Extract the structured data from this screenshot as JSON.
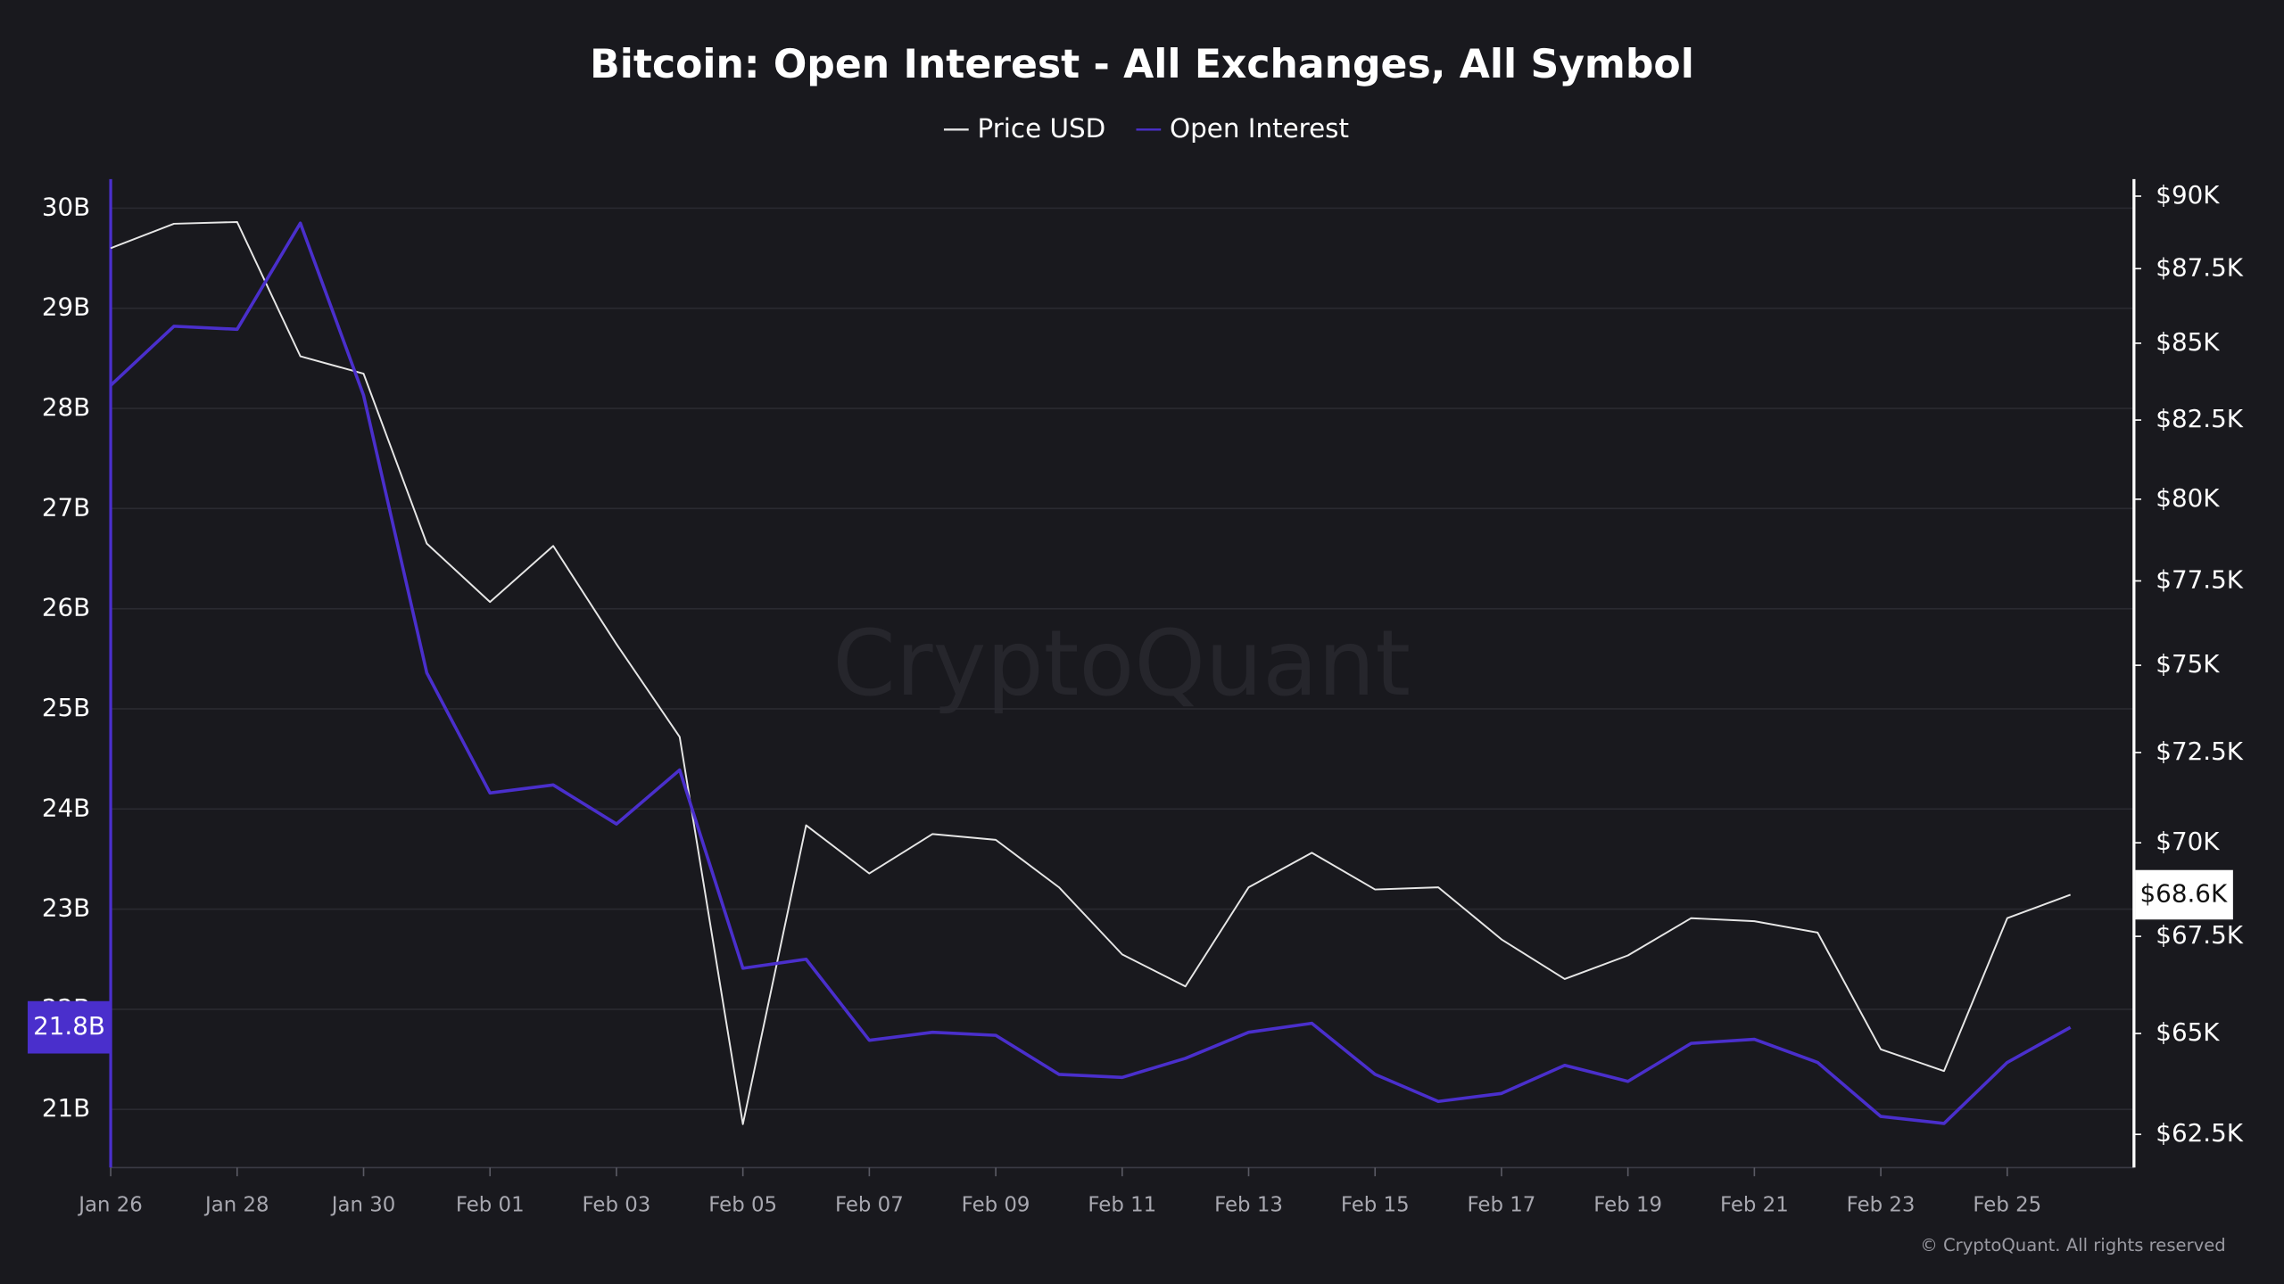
{
  "chart_data": {
    "type": "line",
    "title": "Bitcoin: Open Interest - All Exchanges, All Symbol",
    "categories": [
      "Jan 26",
      null,
      "Jan 28",
      null,
      "Jan 30",
      null,
      "Feb 01",
      null,
      "Feb 03",
      null,
      "Feb 05",
      null,
      "Feb 07",
      null,
      "Feb 09",
      null,
      "Feb 11",
      null,
      "Feb 13",
      null,
      "Feb 15",
      null,
      "Feb 17",
      null,
      "Feb 19",
      null,
      "Feb 21",
      null,
      "Feb 23",
      null,
      "Feb 25",
      null
    ],
    "series": [
      {
        "name": "Price USD",
        "color": "#e6e6e6",
        "axis": "y2",
        "end_label": "$68.6K",
        "values": [
          88200,
          89040,
          89100,
          84570,
          84000,
          78630,
          76870,
          78560,
          75620,
          72940,
          62750,
          70480,
          69170,
          70240,
          70080,
          68800,
          67030,
          66200,
          68800,
          69730,
          68740,
          68800,
          67420,
          66390,
          67000,
          67980,
          67900,
          67600,
          64600,
          64060,
          67980,
          68600
        ]
      },
      {
        "name": "Open Interest",
        "color": "#4a2fcc",
        "end_label": "21.8B",
        "values": [
          28.23,
          28.82,
          28.79,
          29.85,
          28.13,
          25.36,
          24.16,
          24.24,
          23.85,
          24.39,
          22.41,
          22.5,
          21.69,
          21.77,
          21.74,
          21.35,
          21.32,
          21.51,
          21.77,
          21.86,
          21.35,
          21.08,
          21.16,
          21.44,
          21.28,
          21.66,
          21.7,
          21.47,
          20.93,
          20.86,
          21.47,
          21.82
        ]
      }
    ],
    "ylim": [
      20.42,
      30.29
    ],
    "yticks": [
      {
        "value": 21,
        "label": "21B"
      },
      {
        "value": 22,
        "label": "22B"
      },
      {
        "value": 23,
        "label": "23B"
      },
      {
        "value": 24,
        "label": "24B"
      },
      {
        "value": 25,
        "label": "25B"
      },
      {
        "value": 26,
        "label": "26B"
      },
      {
        "value": 27,
        "label": "27B"
      },
      {
        "value": 28,
        "label": "28B"
      },
      {
        "value": 29,
        "label": "29B"
      },
      {
        "value": 30,
        "label": "30B"
      }
    ],
    "y2lim": [
      61700,
      90600
    ],
    "y2ticks": [
      {
        "value": 62500,
        "label": "$62.5K"
      },
      {
        "value": 65000,
        "label": "$65K"
      },
      {
        "value": 67500,
        "label": "$67.5K"
      },
      {
        "value": 70000,
        "label": "$70K"
      },
      {
        "value": 72500,
        "label": "$72.5K"
      },
      {
        "value": 75000,
        "label": "$75K"
      },
      {
        "value": 77500,
        "label": "$77.5K"
      },
      {
        "value": 80000,
        "label": "$80K"
      },
      {
        "value": 82500,
        "label": "$82.5K"
      },
      {
        "value": 85000,
        "label": "$85K"
      },
      {
        "value": 87500,
        "label": "$87.5K"
      },
      {
        "value": 90000,
        "label": "$90K"
      }
    ],
    "y2_log": true,
    "grid": true,
    "watermark": "CryptoQuant",
    "copyright": "© CryptoQuant. All rights reserved"
  }
}
